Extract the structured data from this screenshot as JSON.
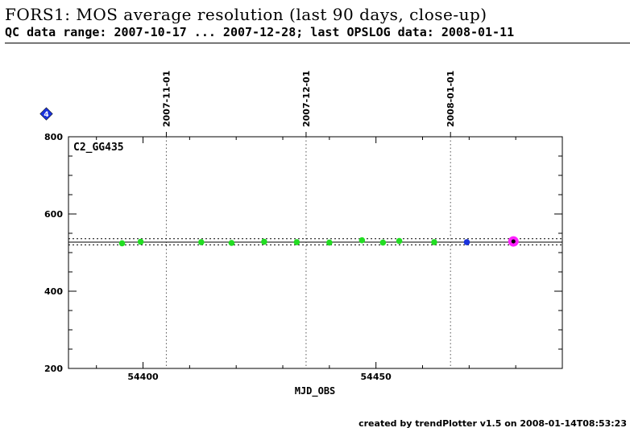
{
  "header": {
    "title": "FORS1: MOS average resolution (last 90 days, close-up)",
    "subtitle": "QC data range: 2007-10-17 ... 2007-12-28; last OPSLOG data: 2008-01-11"
  },
  "footer": {
    "text": "created by trendPlotter v1.5 on 2008-01-14T08:53:23"
  },
  "chart_data": {
    "type": "scatter",
    "panel_label": "C2_GG435",
    "xlabel": "MJD_OBS",
    "ylabel": "",
    "xlim": [
      54384,
      54490
    ],
    "ylim": [
      200,
      800
    ],
    "x_ticks": [
      54400,
      54450
    ],
    "y_ticks": [
      200,
      400,
      600,
      800
    ],
    "date_markers": [
      {
        "label": "2007-11-01",
        "x": 54405
      },
      {
        "label": "2007-12-01",
        "x": 54435
      },
      {
        "label": "2008-01-01",
        "x": 54466
      }
    ],
    "marker_symbol": "4",
    "reference_lines": {
      "mean": 527,
      "upper": 536,
      "lower": 520
    },
    "series": [
      {
        "color": "#22dd22",
        "points": [
          [
            54395.5,
            524
          ],
          [
            54399.5,
            528
          ],
          [
            54412.5,
            527
          ],
          [
            54419,
            525
          ],
          [
            54426,
            528
          ],
          [
            54433,
            527
          ],
          [
            54440,
            526
          ],
          [
            54447,
            532
          ],
          [
            54451.5,
            526
          ],
          [
            54455,
            530
          ],
          [
            54462.5,
            527
          ]
        ]
      },
      {
        "color": "#1a33dd",
        "points": [
          [
            54469.5,
            527
          ]
        ]
      },
      {
        "color": "#ff22ff",
        "highlight": true,
        "points": [
          [
            54479.5,
            529
          ]
        ]
      }
    ]
  }
}
